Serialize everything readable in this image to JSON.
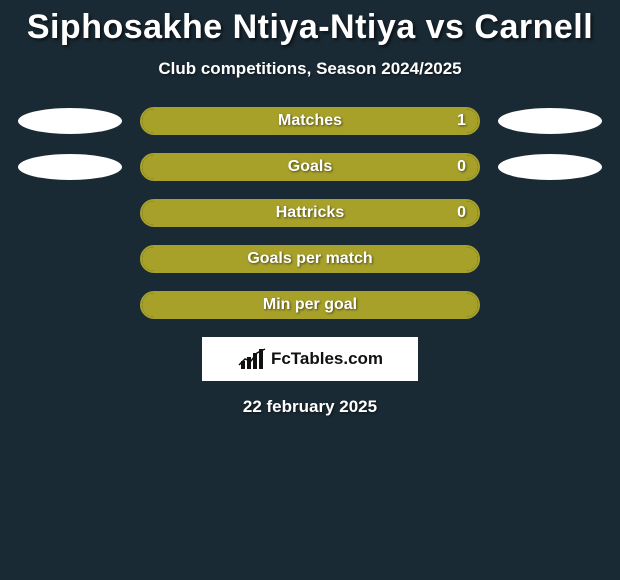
{
  "background_color": "#1a2a34",
  "title": "Siphosakhe Ntiya-Ntiya vs Carnell",
  "subtitle": "Club competitions, Season 2024/2025",
  "date_text": "22 february 2025",
  "logo_text": "FcTables.com",
  "ellipse_color": "#ffffff",
  "bar_border_color": "#a7a12a",
  "bar_fill_color": "#a7a12a",
  "text_color": "#ffffff",
  "label_fontsize": 16,
  "title_fontsize": 34,
  "subtitle_fontsize": 17,
  "rows": [
    {
      "label": "Matches",
      "value": "1",
      "fill_pct": 100,
      "show_value": true,
      "left_ellipse": true,
      "right_ellipse": true
    },
    {
      "label": "Goals",
      "value": "0",
      "fill_pct": 100,
      "show_value": true,
      "left_ellipse": true,
      "right_ellipse": true
    },
    {
      "label": "Hattricks",
      "value": "0",
      "fill_pct": 100,
      "show_value": true,
      "left_ellipse": false,
      "right_ellipse": false
    },
    {
      "label": "Goals per match",
      "value": "",
      "fill_pct": 100,
      "show_value": false,
      "left_ellipse": false,
      "right_ellipse": false
    },
    {
      "label": "Min per goal",
      "value": "",
      "fill_pct": 100,
      "show_value": false,
      "left_ellipse": false,
      "right_ellipse": false
    }
  ]
}
